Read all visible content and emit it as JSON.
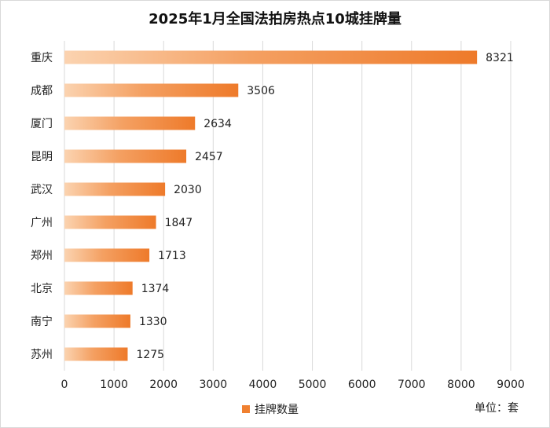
{
  "chart_data": {
    "type": "bar",
    "orientation": "horizontal",
    "title": "2025年1月全国法拍房热点10城挂牌量",
    "categories": [
      "重庆",
      "成都",
      "厦门",
      "昆明",
      "武汉",
      "广州",
      "郑州",
      "北京",
      "南宁",
      "苏州"
    ],
    "series": [
      {
        "name": "挂牌数量",
        "values": [
          8321,
          3506,
          2634,
          2457,
          2030,
          1847,
          1713,
          1374,
          1330,
          1275
        ],
        "color": "#f08030"
      }
    ],
    "xlim": [
      0,
      9000
    ],
    "xticks": [
      0,
      1000,
      2000,
      3000,
      4000,
      5000,
      6000,
      7000,
      8000,
      9000
    ],
    "grid": true,
    "legend_position": "bottom",
    "unit_label": "单位：套"
  }
}
